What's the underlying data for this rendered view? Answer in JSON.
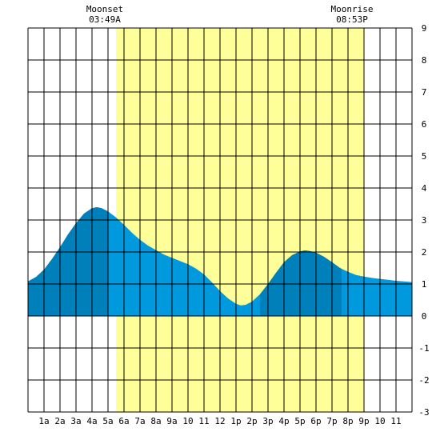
{
  "chart_data": {
    "type": "area",
    "title": "",
    "xlabel": "",
    "ylabel": "",
    "xlim": [
      0,
      24
    ],
    "ylim": [
      -3,
      9
    ],
    "grid": true,
    "x_ticks": [
      {
        "x": 1,
        "label": "1a"
      },
      {
        "x": 2,
        "label": "2a"
      },
      {
        "x": 3,
        "label": "3a"
      },
      {
        "x": 4,
        "label": "4a"
      },
      {
        "x": 5,
        "label": "5a"
      },
      {
        "x": 6,
        "label": "6a"
      },
      {
        "x": 7,
        "label": "7a"
      },
      {
        "x": 8,
        "label": "8a"
      },
      {
        "x": 9,
        "label": "9a"
      },
      {
        "x": 10,
        "label": "10"
      },
      {
        "x": 11,
        "label": "11"
      },
      {
        "x": 12,
        "label": "12"
      },
      {
        "x": 13,
        "label": "1p"
      },
      {
        "x": 14,
        "label": "2p"
      },
      {
        "x": 15,
        "label": "3p"
      },
      {
        "x": 16,
        "label": "4p"
      },
      {
        "x": 17,
        "label": "5p"
      },
      {
        "x": 18,
        "label": "6p"
      },
      {
        "x": 19,
        "label": "7p"
      },
      {
        "x": 20,
        "label": "8p"
      },
      {
        "x": 21,
        "label": "9p"
      },
      {
        "x": 22,
        "label": "10"
      },
      {
        "x": 23,
        "label": "11"
      }
    ],
    "y_ticks": [
      9,
      8,
      7,
      6,
      5,
      4,
      3,
      2,
      1,
      0,
      -1,
      -2,
      -3
    ],
    "daylight": {
      "start": 5.5,
      "end": 21.0
    },
    "moon_events": [
      {
        "label": "Moonset",
        "time": "03:49A",
        "x": 5.55
      },
      {
        "label": "Moonrise",
        "time": "08:53P",
        "x": 21.0
      }
    ],
    "tide_points": [
      [
        0,
        1.08
      ],
      [
        0.5,
        1.22
      ],
      [
        1,
        1.45
      ],
      [
        1.5,
        1.78
      ],
      [
        2,
        2.15
      ],
      [
        2.5,
        2.55
      ],
      [
        3,
        2.9
      ],
      [
        3.5,
        3.2
      ],
      [
        4,
        3.37
      ],
      [
        4.3,
        3.4
      ],
      [
        4.6,
        3.37
      ],
      [
        5,
        3.27
      ],
      [
        5.5,
        3.08
      ],
      [
        6,
        2.85
      ],
      [
        6.5,
        2.6
      ],
      [
        7,
        2.38
      ],
      [
        7.5,
        2.2
      ],
      [
        8,
        2.06
      ],
      [
        8.5,
        1.92
      ],
      [
        9,
        1.82
      ],
      [
        9.5,
        1.72
      ],
      [
        10,
        1.62
      ],
      [
        10.5,
        1.48
      ],
      [
        11,
        1.3
      ],
      [
        11.5,
        1.05
      ],
      [
        12,
        0.78
      ],
      [
        12.5,
        0.55
      ],
      [
        13,
        0.38
      ],
      [
        13.3,
        0.33
      ],
      [
        13.6,
        0.35
      ],
      [
        14,
        0.45
      ],
      [
        14.5,
        0.68
      ],
      [
        15,
        1.0
      ],
      [
        15.5,
        1.35
      ],
      [
        16,
        1.68
      ],
      [
        16.5,
        1.9
      ],
      [
        17,
        2.02
      ],
      [
        17.3,
        2.05
      ],
      [
        17.6,
        2.03
      ],
      [
        18,
        1.98
      ],
      [
        18.5,
        1.85
      ],
      [
        19,
        1.68
      ],
      [
        19.5,
        1.5
      ],
      [
        20,
        1.38
      ],
      [
        20.5,
        1.28
      ],
      [
        21,
        1.23
      ],
      [
        21.5,
        1.19
      ],
      [
        22,
        1.16
      ],
      [
        22.5,
        1.13
      ],
      [
        23,
        1.1
      ],
      [
        23.5,
        1.08
      ],
      [
        24,
        1.06
      ]
    ],
    "shaded_bands": [
      {
        "start": 0,
        "end": 5.0
      },
      {
        "start": 14.5,
        "end": 19.6
      }
    ],
    "colors": {
      "daylight": "#ffff99",
      "tide": "#0099dd",
      "tide_dark": "#0080bb",
      "grid": "#000000",
      "background": "#ffffff"
    }
  }
}
